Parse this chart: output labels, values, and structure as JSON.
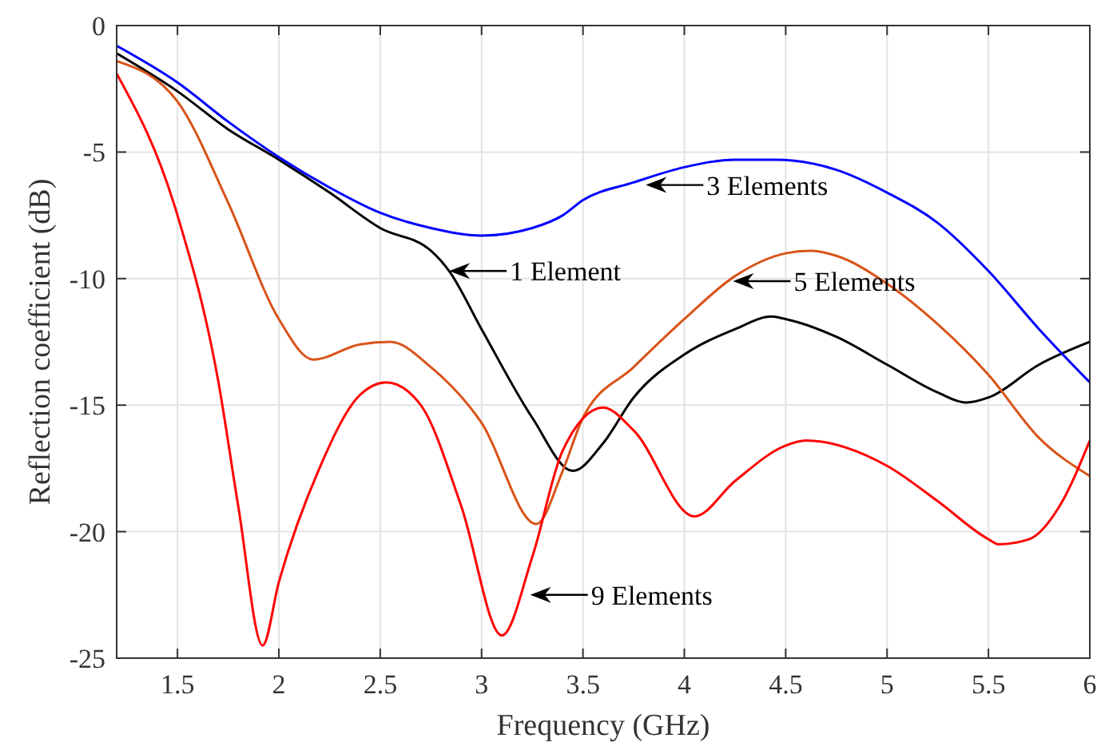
{
  "chart_data": {
    "type": "line",
    "xlabel": "Frequency (GHz)",
    "ylabel": "Reflection coefficient (dB)",
    "xlim": [
      1.2,
      6
    ],
    "xticks": [
      1.5,
      2,
      2.5,
      3,
      3.5,
      4,
      4.5,
      5,
      5.5,
      6
    ],
    "ylim": [
      -25,
      0
    ],
    "yticks": [
      -25,
      -20,
      -15,
      -10,
      -5,
      0
    ],
    "grid": true,
    "line_style": "solid",
    "marker": "none",
    "series": [
      {
        "color": "#000000",
        "x": [
          1.2,
          1.5,
          1.75,
          2,
          2.25,
          2.5,
          2.75,
          2.84,
          3,
          3.25,
          3.45,
          3.6,
          3.75,
          4,
          4.25,
          4.43,
          4.5,
          4.75,
          5,
          5.25,
          5.39,
          5.5,
          5.75,
          6
        ],
        "values": [
          -1.1,
          -2.6,
          -4.1,
          -5.3,
          -6.6,
          -8.0,
          -8.9,
          -9.7,
          -12.0,
          -15.5,
          -17.6,
          -16.5,
          -14.7,
          -13.0,
          -12.0,
          -11.5,
          -11.6,
          -12.3,
          -13.4,
          -14.5,
          -14.9,
          -14.7,
          -13.4,
          -12.5
        ]
      },
      {
        "color": "#0000ff",
        "x": [
          1.2,
          1.5,
          1.75,
          2,
          2.25,
          2.5,
          2.75,
          3,
          3.25,
          3.4,
          3.5,
          3.75,
          4,
          4.25,
          4.45,
          4.75,
          5,
          5.25,
          5.5,
          5.75,
          6
        ],
        "values": [
          -0.8,
          -2.25,
          -3.8,
          -5.2,
          -6.4,
          -7.4,
          -8.0,
          -8.3,
          -8.0,
          -7.5,
          -6.9,
          -6.2,
          -5.6,
          -5.3,
          -5.3,
          -5.7,
          -6.6,
          -7.8,
          -9.7,
          -12.0,
          -14.1
        ]
      },
      {
        "color": "#d95319",
        "x": [
          1.2,
          1.5,
          1.75,
          2,
          2.17,
          2.4,
          2.55,
          2.75,
          3,
          3.27,
          3.4,
          3.5,
          3.75,
          4,
          4.25,
          4.5,
          4.62,
          4.75,
          5,
          5.25,
          5.5,
          5.75,
          6
        ],
        "values": [
          -1.4,
          -3.0,
          -7.0,
          -11.6,
          -13.2,
          -12.6,
          -12.5,
          -13.5,
          -15.7,
          -19.7,
          -17.6,
          -15.5,
          -13.5,
          -11.6,
          -9.9,
          -9.0,
          -8.9,
          -9.1,
          -10.2,
          -11.8,
          -13.8,
          -16.3,
          -17.8
        ]
      },
      {
        "color": "#ff0000",
        "x": [
          1.2,
          1.5,
          1.7,
          1.8,
          1.92,
          2,
          2.2,
          2.4,
          2.53,
          2.7,
          2.9,
          3.1,
          3.25,
          3.4,
          3.6,
          3.75,
          4.05,
          4.25,
          4.5,
          4.6,
          5,
          5.25,
          5.5,
          5.55,
          5.7,
          5.85,
          6
        ],
        "values": [
          -1.9,
          -7.5,
          -14.0,
          -19.0,
          -24.5,
          -22.0,
          -17.5,
          -14.6,
          -14.1,
          -15.0,
          -19.0,
          -24.1,
          -21.0,
          -16.8,
          -15.1,
          -16.0,
          -19.4,
          -18.0,
          -16.6,
          -16.4,
          -17.4,
          -18.8,
          -20.3,
          -20.5,
          -20.3,
          -19.0,
          -16.4
        ]
      }
    ],
    "annotations": [
      {
        "text": "3 Elements",
        "x": 3.81,
        "y": -6.3
      },
      {
        "text": "1 Element",
        "x": 2.84,
        "y": -9.7
      },
      {
        "text": "5 Elements",
        "x": 4.24,
        "y": -10.1
      },
      {
        "text": "9 Elements",
        "x": 3.24,
        "y": -22.5
      }
    ]
  }
}
